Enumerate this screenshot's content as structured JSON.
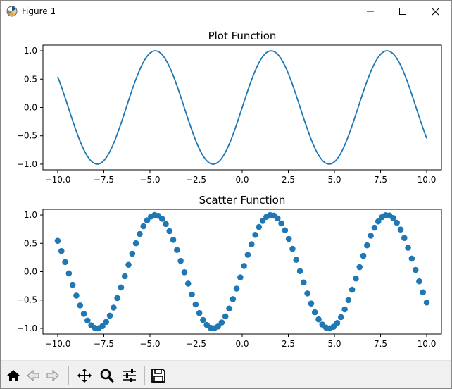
{
  "window": {
    "title": "Figure 1"
  },
  "toolbar": {
    "buttons": [
      {
        "icon": "home-icon"
      },
      {
        "icon": "back-arrow-icon"
      },
      {
        "icon": "forward-arrow-icon"
      },
      {
        "icon": "pan-icon"
      },
      {
        "icon": "zoom-icon"
      },
      {
        "icon": "subplots-icon"
      },
      {
        "icon": "save-icon"
      }
    ]
  },
  "colors": {
    "series": "#1f77b4",
    "axis": "#000000"
  },
  "chart_data": [
    {
      "type": "line",
      "title": "Plot Function",
      "function": "sin(x)",
      "x_range": [
        -10,
        10
      ],
      "xlim": [
        -10.8,
        10.8
      ],
      "ylim": [
        -1.1,
        1.1
      ],
      "xticks": [
        -10.0,
        -7.5,
        -5.0,
        -2.5,
        0.0,
        2.5,
        5.0,
        7.5,
        10.0
      ],
      "xtick_labels": [
        "−10.0",
        "−7.5",
        "−5.0",
        "−2.5",
        "0.0",
        "2.5",
        "5.0",
        "7.5",
        "10.0"
      ],
      "yticks": [
        1.0,
        0.5,
        0.0,
        -0.5,
        -1.0
      ],
      "ytick_labels": [
        "1.0",
        "0.5",
        "0.0",
        "−0.5",
        "−1.0"
      ],
      "grid": false
    },
    {
      "type": "scatter",
      "title": "Scatter Function",
      "function": "sin(x)",
      "x_range": [
        -10,
        10
      ],
      "n_points": 100,
      "xlim": [
        -10.8,
        10.8
      ],
      "ylim": [
        -1.1,
        1.1
      ],
      "xticks": [
        -10.0,
        -7.5,
        -5.0,
        -2.5,
        0.0,
        2.5,
        5.0,
        7.5,
        10.0
      ],
      "xtick_labels": [
        "−10.0",
        "−7.5",
        "−5.0",
        "−2.5",
        "0.0",
        "2.5",
        "5.0",
        "7.5",
        "10.0"
      ],
      "yticks": [
        1.0,
        0.5,
        0.0,
        -0.5,
        -1.0
      ],
      "ytick_labels": [
        "1.0",
        "0.5",
        "0.0",
        "−0.5",
        "−1.0"
      ],
      "grid": false
    }
  ]
}
